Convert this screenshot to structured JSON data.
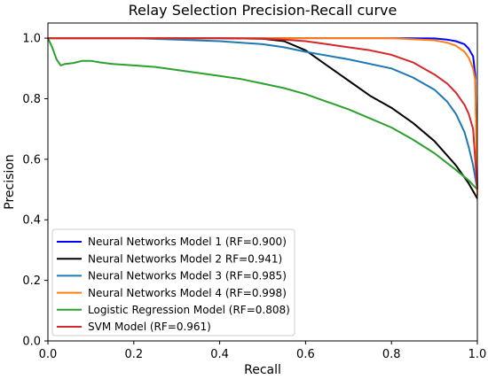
{
  "chart_data": {
    "type": "line",
    "title": "Relay Selection Precision-Recall curve",
    "xlabel": "Recall",
    "ylabel": "Precision",
    "xlim": [
      0.0,
      1.0
    ],
    "ylim": [
      0.0,
      1.05
    ],
    "xticks": [
      "0.0",
      "0.2",
      "0.4",
      "0.6",
      "0.8",
      "1.0"
    ],
    "yticks": [
      "0.0",
      "0.2",
      "0.4",
      "0.6",
      "0.8",
      "1.0"
    ],
    "grid": false,
    "legend_position": "lower-left",
    "series": [
      {
        "name": "Neural Networks Model 1 (RF=0.900)",
        "color": "#0000ff",
        "x": [
          0.0,
          0.2,
          0.4,
          0.6,
          0.8,
          0.9,
          0.93,
          0.95,
          0.97,
          0.98,
          0.99,
          0.995,
          1.0
        ],
        "y": [
          1.0,
          1.0,
          1.0,
          1.0,
          1.0,
          0.999,
          0.995,
          0.99,
          0.98,
          0.965,
          0.94,
          0.88,
          0.5
        ]
      },
      {
        "name": "Neural Networks Model 2 RF=0.941)",
        "color": "#000000",
        "x": [
          0.0,
          0.2,
          0.4,
          0.5,
          0.55,
          0.6,
          0.65,
          0.7,
          0.75,
          0.8,
          0.85,
          0.9,
          0.95,
          0.98,
          1.0
        ],
        "y": [
          1.0,
          1.0,
          1.0,
          0.998,
          0.99,
          0.96,
          0.91,
          0.86,
          0.81,
          0.77,
          0.72,
          0.66,
          0.58,
          0.52,
          0.47
        ]
      },
      {
        "name": "Neural Networks Model 3 (RF=0.985)",
        "color": "#1f77b4",
        "x": [
          0.0,
          0.2,
          0.3,
          0.4,
          0.5,
          0.55,
          0.6,
          0.7,
          0.8,
          0.85,
          0.9,
          0.93,
          0.95,
          0.97,
          0.98,
          0.99,
          1.0
        ],
        "y": [
          1.0,
          1.0,
          0.995,
          0.99,
          0.98,
          0.97,
          0.955,
          0.93,
          0.9,
          0.87,
          0.83,
          0.79,
          0.75,
          0.69,
          0.64,
          0.58,
          0.5
        ]
      },
      {
        "name": "Neural Networks Model 4 (RF=0.998)",
        "color": "#ff7f0e",
        "x": [
          0.0,
          0.2,
          0.4,
          0.6,
          0.8,
          0.9,
          0.93,
          0.95,
          0.97,
          0.98,
          0.99,
          0.995,
          1.0
        ],
        "y": [
          1.0,
          1.0,
          1.0,
          1.0,
          1.0,
          0.993,
          0.985,
          0.975,
          0.955,
          0.935,
          0.9,
          0.86,
          0.48
        ]
      },
      {
        "name": "Logistic Regression Model (RF=0.808)",
        "color": "#2ca02c",
        "x": [
          0.0,
          0.01,
          0.02,
          0.03,
          0.04,
          0.06,
          0.08,
          0.1,
          0.12,
          0.15,
          0.2,
          0.25,
          0.3,
          0.35,
          0.4,
          0.45,
          0.5,
          0.55,
          0.6,
          0.65,
          0.7,
          0.75,
          0.8,
          0.85,
          0.9,
          0.95,
          0.98,
          1.0
        ],
        "y": [
          1.0,
          0.97,
          0.93,
          0.91,
          0.915,
          0.918,
          0.925,
          0.925,
          0.92,
          0.915,
          0.91,
          0.905,
          0.895,
          0.885,
          0.875,
          0.865,
          0.85,
          0.835,
          0.815,
          0.79,
          0.765,
          0.735,
          0.705,
          0.665,
          0.62,
          0.565,
          0.53,
          0.5
        ]
      },
      {
        "name": "SVM Model (RF=0.961)",
        "color": "#d62728",
        "x": [
          0.0,
          0.2,
          0.4,
          0.5,
          0.55,
          0.6,
          0.65,
          0.7,
          0.75,
          0.8,
          0.85,
          0.9,
          0.93,
          0.95,
          0.97,
          0.98,
          0.99,
          1.0
        ],
        "y": [
          1.0,
          1.0,
          1.0,
          0.998,
          0.995,
          0.99,
          0.98,
          0.97,
          0.96,
          0.945,
          0.92,
          0.88,
          0.85,
          0.82,
          0.78,
          0.75,
          0.7,
          0.5
        ]
      }
    ]
  }
}
